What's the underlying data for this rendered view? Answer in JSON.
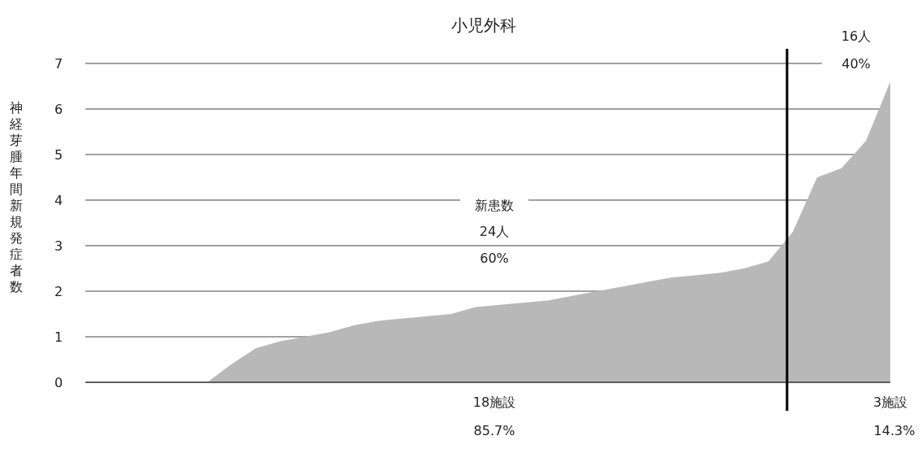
{
  "chart_data": {
    "type": "area",
    "title": "小児外科",
    "ylabel": "神経芽腫年間新規発症者数",
    "categories": [
      null,
      null,
      null,
      null,
      null,
      null,
      null,
      null,
      null,
      null,
      null,
      null,
      null,
      null,
      null,
      null,
      null,
      null,
      null,
      null,
      null,
      null,
      null,
      null,
      null,
      null,
      null,
      null,
      null,
      null,
      null,
      null,
      null,
      null
    ],
    "series": [
      {
        "color": "#b8b8b8",
        "values": [
          0,
          0,
          0,
          0,
          0,
          0,
          0.4,
          0.75,
          0.9,
          1.0,
          1.1,
          1.25,
          1.35,
          1.4,
          1.45,
          1.5,
          1.65,
          1.7,
          1.75,
          1.8,
          1.9,
          2.0,
          2.1,
          2.2,
          2.3,
          2.35,
          2.4,
          2.5,
          2.65,
          3.3,
          4.5,
          4.7,
          5.3,
          6.6
        ]
      }
    ],
    "ylim": [
      0,
      7
    ],
    "yticks": [
      0,
      1,
      2,
      3,
      4,
      5,
      6,
      7
    ],
    "grid": "y",
    "tick_labels": "y",
    "annotations": [
      "新患数",
      "24人",
      "60%",
      "16人",
      "40%",
      "18施設",
      "85.7%",
      "3施設",
      "14.3%"
    ]
  }
}
